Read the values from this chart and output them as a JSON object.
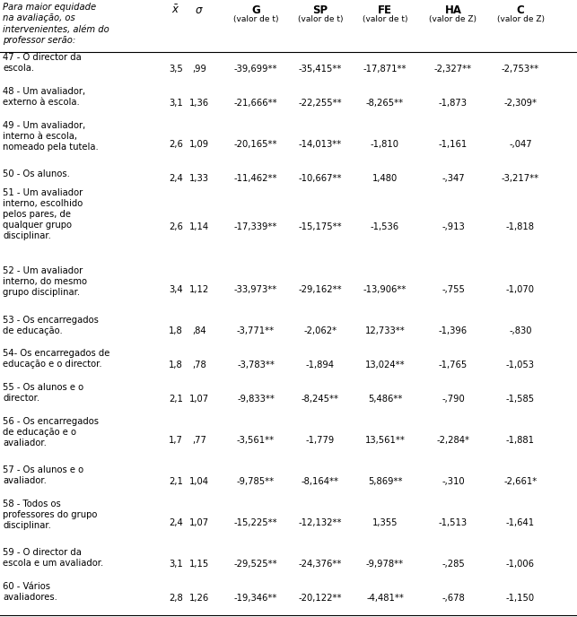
{
  "header_col": "Para maior equidade\nna avaliação, os\nintervenientes, além do\nprofessor serão:",
  "rows": [
    {
      "label": "47 - O director da\nescola.",
      "mean": "3,5",
      "sd": ",99",
      "G": "-39,699**",
      "SP": "-35,415**",
      "FE": "-17,871**",
      "HA": "-2,327**",
      "C": "-2,753**"
    },
    {
      "label": "48 - Um avaliador,\nexterno à escola.",
      "mean": "3,1",
      "sd": "1,36",
      "G": "-21,666**",
      "SP": "-22,255**",
      "FE": "-8,265**",
      "HA": "-1,873",
      "C": "-2,309*"
    },
    {
      "label": "49 - Um avaliador,\ninterno à escola,\nnomeado pela tutela.",
      "mean": "2,6",
      "sd": "1,09",
      "G": "-20,165**",
      "SP": "-14,013**",
      "FE": "-1,810",
      "HA": "-1,161",
      "C": "-,047"
    },
    {
      "label": "50 - Os alunos.",
      "mean": "2,4",
      "sd": "1,33",
      "G": "-11,462**",
      "SP": "-10,667**",
      "FE": "1,480",
      "HA": "-,347",
      "C": "-3,217**"
    },
    {
      "label": "51 - Um avaliador\ninterno, escolhido\npelos pares, de\nqualquer grupo\ndisciplinar.",
      "mean": "2,6",
      "sd": "1,14",
      "G": "-17,339**",
      "SP": "-15,175**",
      "FE": "-1,536",
      "HA": "-,913",
      "C": "-1,818"
    },
    {
      "label": "52 - Um avaliador\ninterno, do mesmo\ngrupo disciplinar.",
      "mean": "3,4",
      "sd": "1,12",
      "G": "-33,973**",
      "SP": "-29,162**",
      "FE": "-13,906**",
      "HA": "-,755",
      "C": "-1,070"
    },
    {
      "label": "53 - Os encarregados\nde educação.",
      "mean": "1,8",
      "sd": ",84",
      "G": "-3,771**",
      "SP": "-2,062*",
      "FE": "12,733**",
      "HA": "-1,396",
      "C": "-,830"
    },
    {
      "label": "54- Os encarregados de\neducação e o director.",
      "mean": "1,8",
      "sd": ",78",
      "G": "-3,783**",
      "SP": "-1,894",
      "FE": "13,024**",
      "HA": "-1,765",
      "C": "-1,053"
    },
    {
      "label": "55 - Os alunos e o\ndirector.",
      "mean": "2,1",
      "sd": "1,07",
      "G": "-9,833**",
      "SP": "-8,245**",
      "FE": "5,486**",
      "HA": "-,790",
      "C": "-1,585"
    },
    {
      "label": "56 - Os encarregados\nde educação e o\navaliador.",
      "mean": "1,7",
      "sd": ",77",
      "G": "-3,561**",
      "SP": "-1,779",
      "FE": "13,561**",
      "HA": "-2,284*",
      "C": "-1,881"
    },
    {
      "label": "57 - Os alunos e o\navaliador.",
      "mean": "2,1",
      "sd": "1,04",
      "G": "-9,785**",
      "SP": "-8,164**",
      "FE": "5,869**",
      "HA": "-,310",
      "C": "-2,661*"
    },
    {
      "label": "58 - Todos os\nprofessores do grupo\ndisciplinar.",
      "mean": "2,4",
      "sd": "1,07",
      "G": "-15,225**",
      "SP": "-12,132**",
      "FE": "1,355",
      "HA": "-1,513",
      "C": "-1,641"
    },
    {
      "label": "59 - O director da\nescola e um avaliador.",
      "mean": "3,1",
      "sd": "1,15",
      "G": "-29,525**",
      "SP": "-24,376**",
      "FE": "-9,978**",
      "HA": "-,285",
      "C": "-1,006"
    },
    {
      "label": "60 - Vários\navaliadores.",
      "mean": "2,8",
      "sd": "1,26",
      "G": "-19,346**",
      "SP": "-20,122**",
      "FE": "-4,481**",
      "HA": "-,678",
      "C": "-1,150"
    }
  ],
  "bg_color": "#ffffff",
  "text_color": "#000000",
  "font_size": 7.2,
  "header_font_size": 8.5,
  "sub_font_size": 6.5
}
